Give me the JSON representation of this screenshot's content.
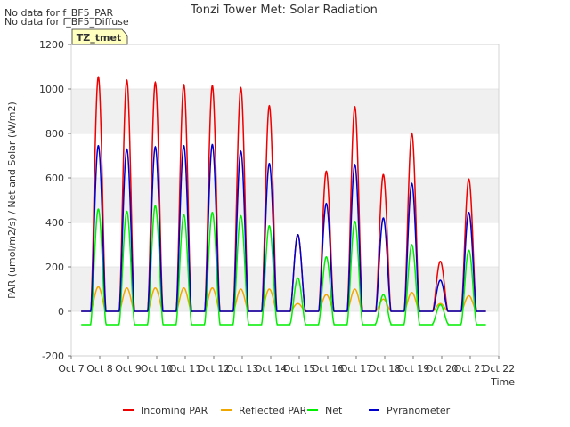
{
  "chart_data": {
    "type": "line",
    "title": "Tonzi Tower Met: Solar Radiation",
    "xlabel": "Time",
    "ylabel": "PAR (umol/m2/s) / Net and Solar (W/m2)",
    "notes": [
      "No data for f_BF5_PAR",
      "No data for f_BF5_Diffuse"
    ],
    "badge": "TZ_tmet",
    "xlim": [
      7,
      22
    ],
    "ylim": [
      -200,
      1200
    ],
    "x_ticks": [
      7,
      8,
      9,
      10,
      11,
      12,
      13,
      14,
      15,
      16,
      17,
      18,
      19,
      20,
      21,
      22
    ],
    "x_tick_labels": [
      "Oct 7",
      "Oct 8",
      "Oct 9",
      "Oct 10",
      "Oct 11",
      "Oct 12",
      "Oct 13",
      "Oct 14",
      "Oct 15",
      "Oct 16",
      "Oct 17",
      "Oct 18",
      "Oct 19",
      "Oct 20",
      "Oct 21",
      "Oct 22"
    ],
    "y_ticks": [
      -200,
      0,
      200,
      400,
      600,
      800,
      1000,
      1200
    ],
    "y_tick_labels": [
      "-200",
      "0",
      "200",
      "400",
      "600",
      "800",
      "1000",
      "1200"
    ],
    "grid": true,
    "legend_position": "bottom",
    "days": [
      8,
      9,
      10,
      11,
      12,
      13,
      14,
      15,
      16,
      17,
      18,
      19,
      20,
      21
    ],
    "series": [
      {
        "name": "Incoming PAR",
        "color": "#ee0000",
        "baseline": 0,
        "night": 0,
        "daily_peaks": [
          1055,
          1040,
          1030,
          1020,
          1015,
          1005,
          925,
          345,
          630,
          920,
          615,
          800,
          225,
          595
        ]
      },
      {
        "name": "Reflected PAR",
        "color": "#f0a800",
        "baseline": 0,
        "night": 0,
        "daily_peaks": [
          110,
          105,
          105,
          105,
          105,
          100,
          100,
          35,
          75,
          100,
          55,
          85,
          35,
          70
        ]
      },
      {
        "name": "Net",
        "color": "#00ee00",
        "baseline": -55,
        "night": -60,
        "daily_peaks": [
          460,
          450,
          475,
          435,
          445,
          430,
          385,
          150,
          245,
          405,
          75,
          300,
          30,
          275
        ]
      },
      {
        "name": "Pyranometer",
        "color": "#0000cc",
        "baseline": 0,
        "night": 0,
        "daily_peaks": [
          745,
          730,
          740,
          745,
          750,
          720,
          665,
          345,
          485,
          660,
          420,
          575,
          140,
          445
        ]
      }
    ]
  }
}
